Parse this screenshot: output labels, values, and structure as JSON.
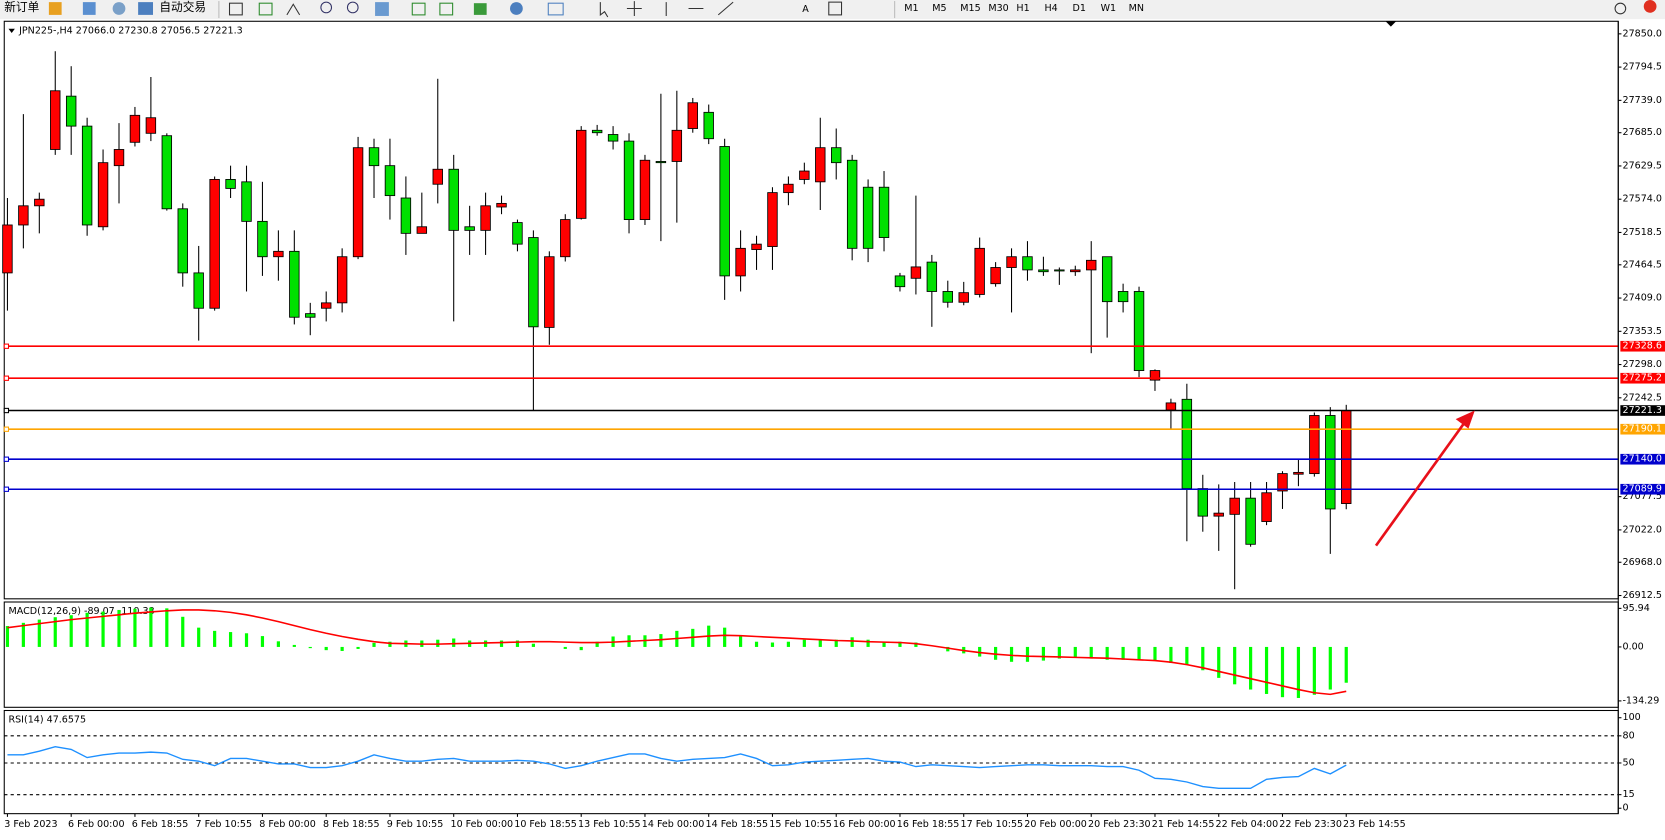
{
  "toolbar": {
    "new_order": "新订单",
    "auto_trading": "自动交易",
    "timeframes": [
      "M1",
      "M5",
      "M15",
      "M30",
      "H1",
      "H4",
      "D1",
      "W1",
      "MN"
    ]
  },
  "chart_data": [
    {
      "type": "candlestick",
      "title": "JPN225-,H4 27066.0 27230.8 27056.5 27221.3",
      "categories": [
        "3 Feb 2023",
        null,
        null,
        null,
        "6 Feb 00:00",
        null,
        null,
        null,
        "6 Feb 18:55",
        null,
        null,
        null,
        "7 Feb 10:55",
        null,
        null,
        null,
        "8 Feb 00:00",
        null,
        null,
        null,
        "8 Feb 18:55",
        null,
        null,
        null,
        "9 Feb 10:55",
        null,
        null,
        null,
        "10 Feb 00:00",
        null,
        null,
        null,
        "10 Feb 18:55",
        null,
        null,
        null,
        "13 Feb 10:55",
        null,
        null,
        null,
        "14 Feb 00:00",
        null,
        null,
        null,
        "14 Feb 18:55",
        null,
        null,
        null,
        "15 Feb 10:55",
        null,
        null,
        null,
        "16 Feb 00:00",
        null,
        null,
        null,
        "16 Feb 18:55",
        null,
        null,
        null,
        "17 Feb 10:55",
        null,
        null,
        null,
        "20 Feb 00:00",
        null,
        null,
        null,
        "20 Feb 23:30",
        null,
        null,
        null,
        "21 Feb 14:55",
        null,
        null,
        null,
        "22 Feb 04:00",
        null,
        null,
        null,
        "22 Feb 23:30",
        null,
        null,
        null,
        "23 Feb 14:55"
      ],
      "open": [
        27451,
        27531,
        27563,
        27657,
        27746,
        27696,
        27528,
        27630,
        27669,
        27684,
        27680,
        27558,
        27451,
        27392,
        27607,
        27603,
        27537,
        27478,
        27487,
        27383,
        27392,
        27401,
        27478,
        27660,
        27630,
        27576,
        27517,
        27599,
        27624,
        27528,
        27522,
        27561,
        27535,
        27510,
        27360,
        27478,
        27542,
        27689,
        27682,
        27671,
        27540,
        27637,
        27637,
        27692,
        27719,
        27662,
        27446,
        27490,
        27495,
        27585,
        27607,
        27603,
        27660,
        27639,
        27594,
        27594,
        27446,
        27442,
        27469,
        27420,
        27402,
        27415,
        27433,
        27460,
        27478,
        27456,
        27456,
        27453,
        27456,
        27478,
        27420,
        27420,
        27272,
        27222,
        27240,
        27091,
        27045,
        27048,
        27075,
        27036,
        27087,
        27115,
        27116,
        27213,
        27066.0
      ],
      "high": [
        27576,
        27716,
        27585,
        27821,
        27796,
        27710,
        27657,
        27701,
        27728,
        27778,
        27684,
        27567,
        27496,
        27612,
        27630,
        27630,
        27603,
        27522,
        27522,
        27401,
        27420,
        27492,
        27678,
        27675,
        27675,
        27612,
        27585,
        27775,
        27648,
        27563,
        27585,
        27580,
        27540,
        27522,
        27487,
        27549,
        27696,
        27698,
        27696,
        27684,
        27648,
        27750,
        27755,
        27743,
        27732,
        27675,
        27522,
        27513,
        27594,
        27612,
        27635,
        27710,
        27692,
        27648,
        27607,
        27621,
        27451,
        27580,
        27481,
        27438,
        27436,
        27510,
        27469,
        27492,
        27504,
        27478,
        27460,
        27463,
        27504,
        27478,
        27433,
        27428,
        27290,
        27241,
        27266,
        27114,
        27098,
        27102,
        27102,
        27102,
        27120,
        27140,
        27218,
        27227,
        27230.8
      ],
      "low": [
        27388,
        27492,
        27517,
        27648,
        27648,
        27513,
        27522,
        27567,
        27662,
        27671,
        27555,
        27428,
        27338,
        27388,
        27576,
        27420,
        27446,
        27438,
        27365,
        27347,
        27370,
        27385,
        27474,
        27576,
        27540,
        27481,
        27517,
        27567,
        27370,
        27481,
        27481,
        27549,
        27487,
        27222,
        27331,
        27470,
        27540,
        27680,
        27657,
        27517,
        27531,
        27504,
        27535,
        27685,
        27666,
        27406,
        27420,
        27456,
        27456,
        27564,
        27599,
        27556,
        27607,
        27472,
        27469,
        27487,
        27420,
        27415,
        27361,
        27393,
        27397,
        27410,
        27428,
        27385,
        27438,
        27446,
        27431,
        27446,
        27317,
        27343,
        27385,
        27277,
        27254,
        27191,
        27003,
        27019,
        26987,
        26923,
        26994,
        27030,
        27057,
        27095,
        27111,
        26982,
        27056.5
      ],
      "close": [
        27531,
        27563,
        27574,
        27755,
        27696,
        27531,
        27635,
        27657,
        27714,
        27710,
        27558,
        27451,
        27392,
        27607,
        27592,
        27537,
        27478,
        27487,
        27377,
        27377,
        27401,
        27478,
        27660,
        27630,
        27580,
        27517,
        27528,
        27624,
        27522,
        27522,
        27563,
        27567,
        27499,
        27361,
        27478,
        27540,
        27689,
        27685,
        27671,
        27540,
        27639,
        27635,
        27689,
        27735,
        27675,
        27446,
        27492,
        27499,
        27585,
        27599,
        27621,
        27660,
        27635,
        27492,
        27492,
        27510,
        27428,
        27461,
        27420,
        27402,
        27418,
        27492,
        27460,
        27478,
        27456,
        27453,
        27455,
        27456,
        27472,
        27403,
        27403,
        27288,
        27288,
        27234,
        27091,
        27045,
        27050,
        27075,
        26998,
        27084,
        27116,
        27118,
        27213,
        27057,
        27221.3
      ],
      "up_color": "#ff0000",
      "down_color": "#00e000",
      "ylim": [
        26907,
        27871
      ],
      "yticks": [
        {
          "value": 27850,
          "label": "27850.0"
        },
        27794.5,
        {
          "value": 27739,
          "label": "27739.0"
        },
        {
          "value": 27685,
          "label": "27685.0"
        },
        27629.5,
        {
          "value": 27574,
          "label": "27574.0"
        },
        27518.5,
        27464.5,
        {
          "value": 27409,
          "label": "27409.0"
        },
        27353.5,
        {
          "value": 27298,
          "label": "27298.0"
        },
        27242.5,
        27077.5,
        {
          "value": 27022,
          "label": "27022.0"
        },
        {
          "value": 26968,
          "label": "26968.0"
        },
        26912.5
      ],
      "levels": [
        {
          "value": 27328.6,
          "color": "#ff0000"
        },
        {
          "value": 27275.2,
          "color": "#ff0000"
        },
        {
          "value": 27221.3,
          "color": "#000000"
        },
        {
          "value": 27190.1,
          "color": "#ffa500"
        },
        {
          "value": 27140,
          "label": "27140.0",
          "color": "#0000cd"
        },
        {
          "value": 27089.9,
          "color": "#0000cd"
        }
      ]
    },
    {
      "type": "macd",
      "title": "MACD(12,26,9) -89.07 -110.38",
      "histogram": {
        "color": "#00ff00",
        "values": [
          52,
          60,
          68,
          74,
          79,
          85,
          88,
          92,
          95,
          98,
          96,
          75,
          48,
          40,
          37,
          34,
          27,
          14,
          5,
          -3,
          -8,
          -10,
          -5,
          10,
          13,
          16,
          16,
          18,
          21,
          16,
          16,
          16,
          16,
          8,
          0,
          -5,
          -8,
          13,
          26,
          29,
          29,
          32,
          40,
          45,
          53,
          48,
          26,
          13,
          11,
          13,
          18,
          18,
          18,
          24,
          18,
          13,
          13,
          11,
          0,
          -11,
          -16,
          -24,
          -32,
          -37,
          -37,
          -34,
          -29,
          -26,
          -29,
          -32,
          -32,
          -32,
          -34,
          -40,
          -45,
          -58,
          -77,
          -93,
          -106,
          -117,
          -125,
          -127,
          -119,
          -106,
          -89.07
        ]
      },
      "signal": {
        "color": "#ff0000",
        "values": [
          48,
          53,
          58,
          63,
          68,
          72,
          76,
          80,
          84,
          87,
          90,
          92,
          92,
          90,
          86,
          80,
          72,
          63,
          53,
          43,
          34,
          26,
          19,
          13,
          9,
          8,
          7,
          7,
          8,
          9,
          10,
          11,
          12,
          13,
          13,
          12,
          11,
          11,
          12,
          14,
          16,
          18,
          21,
          24,
          27,
          29,
          28,
          26,
          24,
          22,
          20,
          18,
          16,
          15,
          13,
          12,
          11,
          8,
          3,
          -3,
          -9,
          -14,
          -18,
          -21,
          -23,
          -24,
          -25,
          -26,
          -27,
          -28,
          -30,
          -32,
          -34,
          -38,
          -44,
          -52,
          -61,
          -70,
          -79,
          -88,
          -97,
          -106,
          -114,
          -118,
          -110.38
        ]
      },
      "ylim": [
        -150.2,
        111.8
      ],
      "yticks": [
        95.94,
        {
          "value": 0,
          "label": "0.00"
        },
        -134.29
      ]
    },
    {
      "type": "line",
      "title": "RSI(14) 47.6575",
      "color": "#1e90ff",
      "values": [
        59,
        59,
        63,
        68,
        65,
        56,
        59,
        61,
        61,
        62,
        61,
        54,
        52,
        47,
        55,
        55,
        52,
        49,
        49,
        45,
        45,
        47,
        52,
        59,
        55,
        52,
        52,
        54,
        55,
        52,
        52,
        52,
        53,
        52,
        49,
        44,
        47,
        52,
        56,
        60,
        60,
        55,
        52,
        54,
        55,
        56,
        60,
        55,
        47,
        48,
        51,
        52,
        53,
        54,
        55,
        52,
        51,
        46,
        48,
        47,
        46,
        45,
        46,
        47,
        48,
        48,
        47,
        47,
        47,
        46,
        46,
        42,
        33,
        32,
        29,
        24,
        22,
        22,
        22,
        32,
        34,
        35,
        44,
        38,
        47.6575
      ],
      "ylim": [
        -6,
        108
      ],
      "yticks": [
        100,
        80,
        50,
        15,
        0
      ],
      "levels": [
        80,
        50,
        15
      ]
    }
  ]
}
